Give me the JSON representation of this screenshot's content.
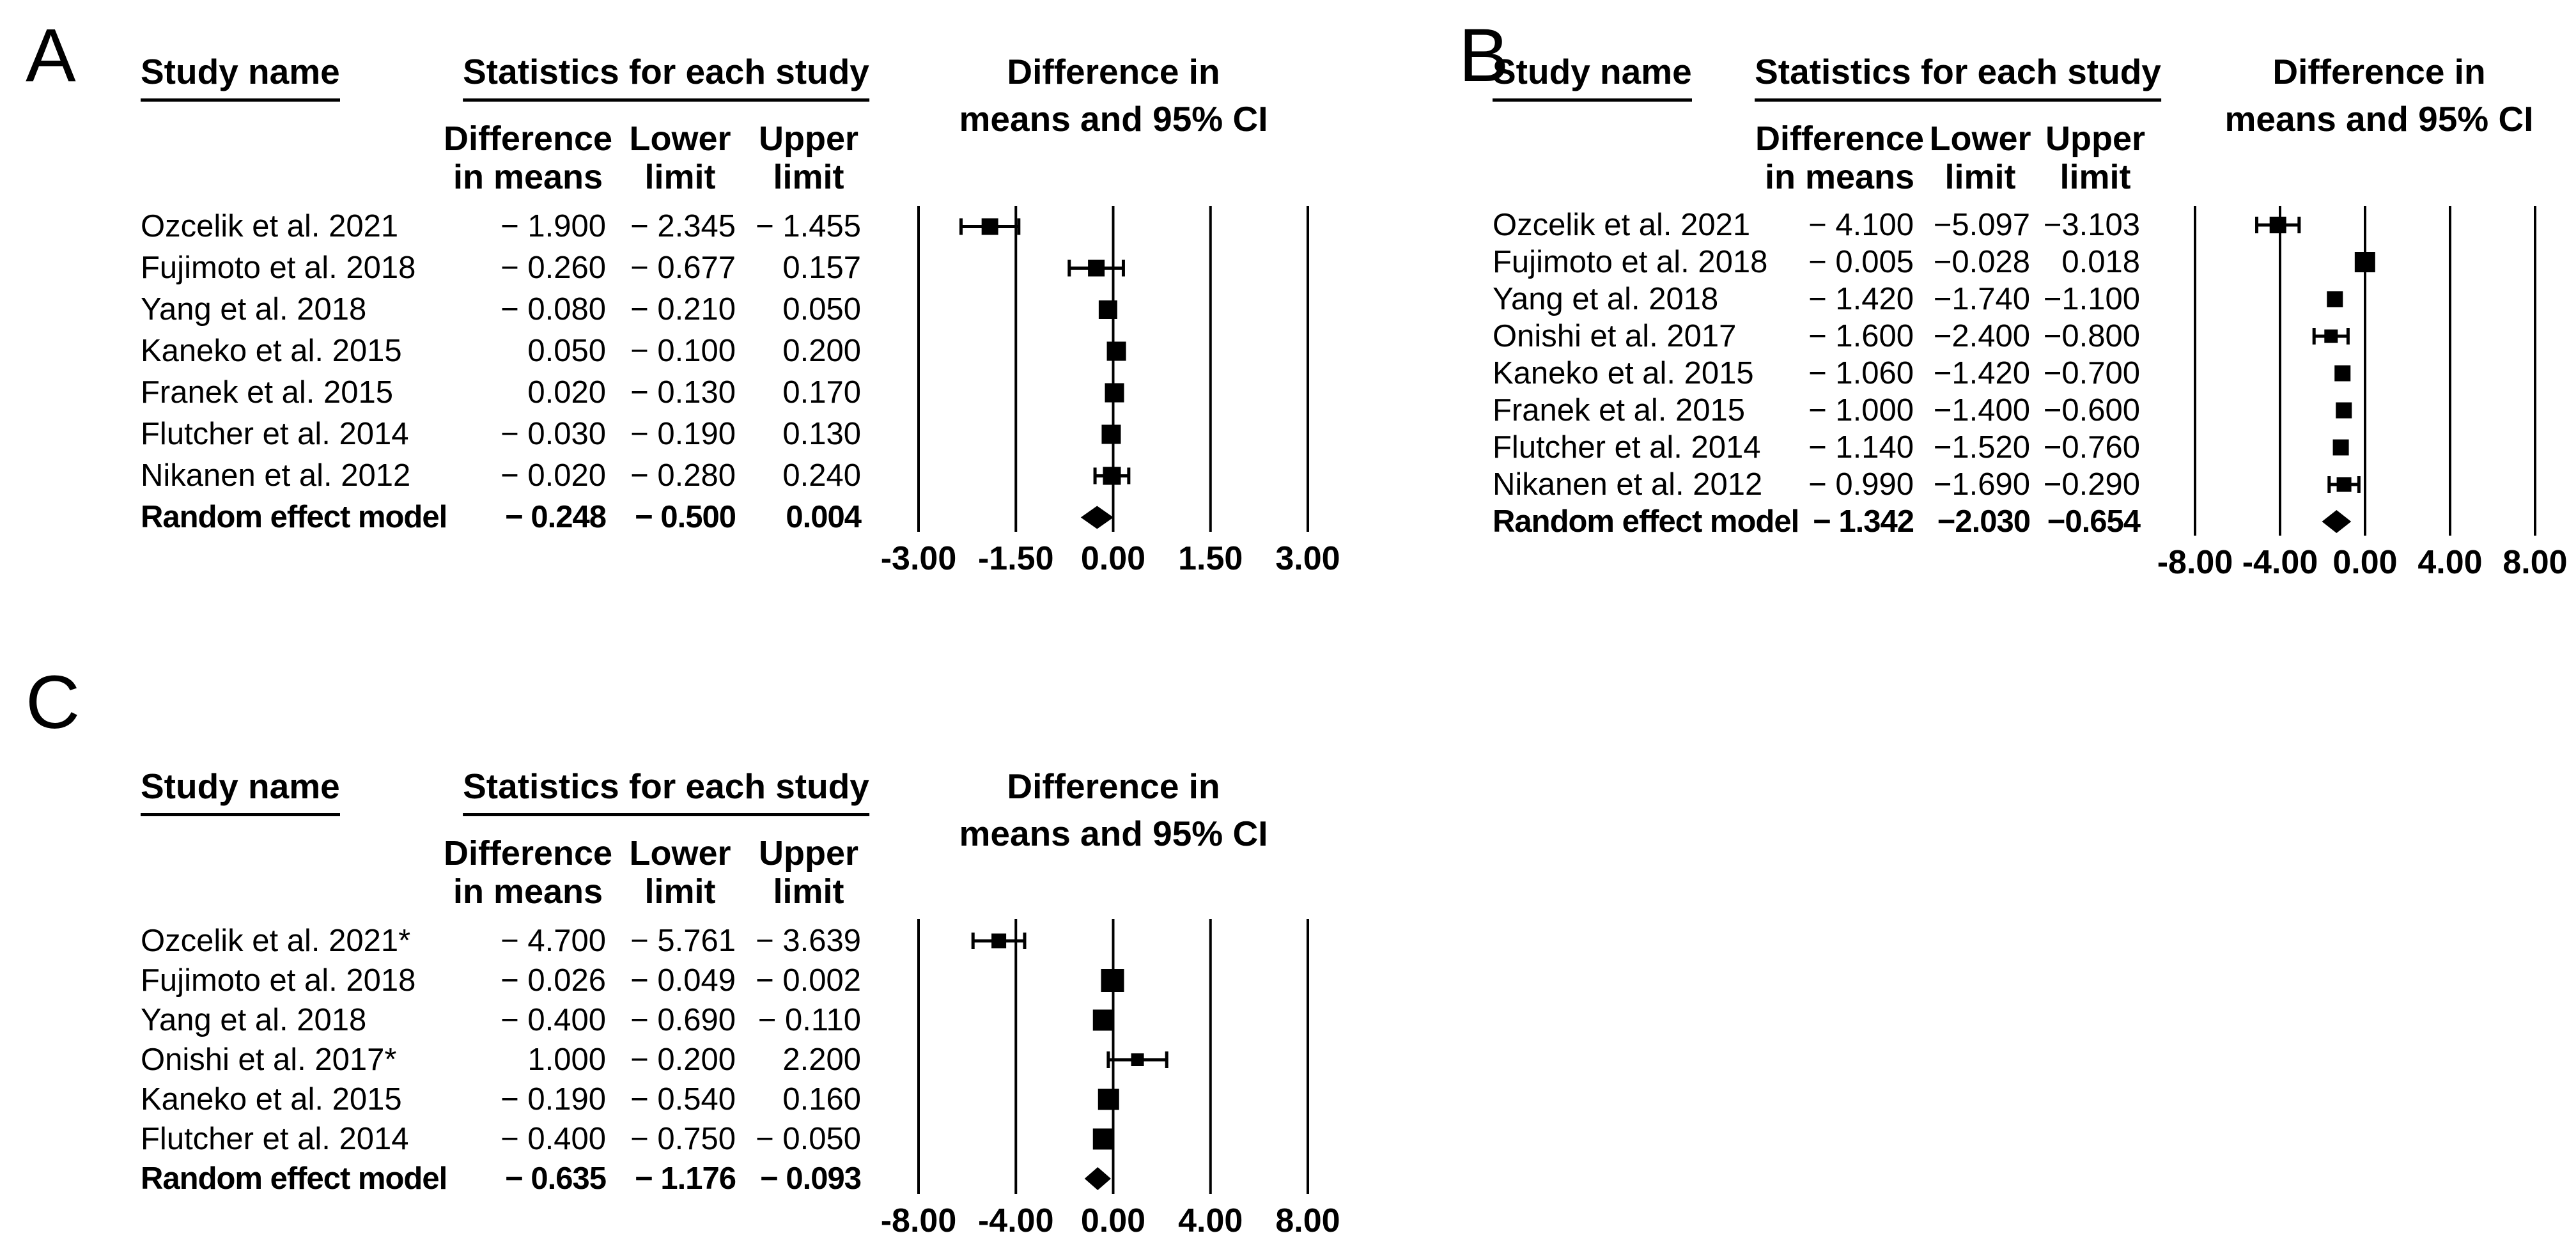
{
  "headers": {
    "study_name": "Study name",
    "stats_title": "Statistics for each study",
    "col_diff_line1": "Difference",
    "col_diff_line2": "in means",
    "col_lower_line1": "Lower",
    "col_lower_line2": "limit",
    "col_upper_line1": "Upper",
    "col_upper_line2": "limit",
    "plot_title_line1": "Difference in",
    "plot_title_line2": "means and 95% CI"
  },
  "chart_data": [
    {
      "type": "forest",
      "panel_label": "A",
      "title": "Difference in means and 95% CI",
      "xlim": [
        -3,
        3
      ],
      "tick_values": [
        -3,
        -1.5,
        0,
        1.5,
        3
      ],
      "tick_labels": [
        "-3.00",
        "-1.50",
        "0.00",
        "1.50",
        "3.00"
      ],
      "studies": [
        {
          "name": "Ozcelik et al. 2021",
          "mean": -1.9,
          "lower": -2.345,
          "upper": -1.455,
          "diff_text": "− 1.900",
          "lower_text": "− 2.345",
          "upper_text": "− 1.455",
          "box": 26
        },
        {
          "name": "Fujimoto et al. 2018",
          "mean": -0.26,
          "lower": -0.677,
          "upper": 0.157,
          "diff_text": "− 0.260",
          "lower_text": "− 0.677",
          "upper_text": "0.157",
          "box": 26
        },
        {
          "name": "Yang et al. 2018",
          "mean": -0.08,
          "lower": -0.21,
          "upper": 0.05,
          "diff_text": "− 0.080",
          "lower_text": "− 0.210",
          "upper_text": "0.050",
          "box": 29
        },
        {
          "name": "Kaneko et al. 2015",
          "mean": 0.05,
          "lower": -0.1,
          "upper": 0.2,
          "diff_text": "0.050",
          "lower_text": "− 0.100",
          "upper_text": "0.200",
          "box": 30
        },
        {
          "name": "Franek et al.  2015",
          "mean": 0.02,
          "lower": -0.13,
          "upper": 0.17,
          "diff_text": "0.020",
          "lower_text": "− 0.130",
          "upper_text": "0.170",
          "box": 30
        },
        {
          "name": "Flutcher et al. 2014",
          "mean": -0.03,
          "lower": -0.19,
          "upper": 0.13,
          "diff_text": "− 0.030",
          "lower_text": "− 0.190",
          "upper_text": "0.130",
          "box": 30
        },
        {
          "name": "Nikanen et al. 2012",
          "mean": -0.02,
          "lower": -0.28,
          "upper": 0.24,
          "diff_text": "− 0.020",
          "lower_text": "− 0.280",
          "upper_text": "0.240",
          "box": 28
        },
        {
          "name": "Random effect model",
          "mean": -0.248,
          "lower": -0.5,
          "upper": 0.004,
          "diff_text": "− 0.248",
          "lower_text": "− 0.500",
          "upper_text": "0.004",
          "summary": true
        }
      ]
    },
    {
      "type": "forest",
      "panel_label": "B",
      "title": "Difference in means and 95% CI",
      "xlim": [
        -8,
        8
      ],
      "tick_values": [
        -8,
        -4,
        0,
        4,
        8
      ],
      "tick_labels": [
        "-8.00",
        "-4.00",
        "0.00",
        "4.00",
        "8.00"
      ],
      "studies": [
        {
          "name": "Ozcelik et al. 2021",
          "mean": -4.1,
          "lower": -5.097,
          "upper": -3.103,
          "diff_text": "− 4.100",
          "lower_text": "−5.097",
          "upper_text": "−3.103",
          "box": 26
        },
        {
          "name": "Fujimoto et al. 2018",
          "mean": -0.005,
          "lower": -0.028,
          "upper": 0.018,
          "diff_text": "− 0.005",
          "lower_text": "−0.028",
          "upper_text": "0.018",
          "box": 32
        },
        {
          "name": "Yang et al. 2018",
          "mean": -1.42,
          "lower": -1.74,
          "upper": -1.1,
          "diff_text": "− 1.420",
          "lower_text": "−1.740",
          "upper_text": "−1.100",
          "box": 25
        },
        {
          "name": "Onishi et al. 2017",
          "mean": -1.6,
          "lower": -2.4,
          "upper": -0.8,
          "diff_text": "− 1.600",
          "lower_text": "−2.400",
          "upper_text": "−0.800",
          "box": 21
        },
        {
          "name": "Kaneko et al. 2015",
          "mean": -1.06,
          "lower": -1.42,
          "upper": -0.7,
          "diff_text": "− 1.060",
          "lower_text": "−1.420",
          "upper_text": "−0.700",
          "box": 25
        },
        {
          "name": "Franek  et al. 2015",
          "mean": -1.0,
          "lower": -1.4,
          "upper": -0.6,
          "diff_text": "− 1.000",
          "lower_text": "−1.400",
          "upper_text": "−0.600",
          "box": 25
        },
        {
          "name": "Flutcher et al. 2014",
          "mean": -1.14,
          "lower": -1.52,
          "upper": -0.76,
          "diff_text": "− 1.140",
          "lower_text": "−1.520",
          "upper_text": "−0.760",
          "box": 25
        },
        {
          "name": "Nikanen et al. 2012",
          "mean": -0.99,
          "lower": -1.69,
          "upper": -0.29,
          "diff_text": "− 0.990",
          "lower_text": "−1.690",
          "upper_text": "−0.290",
          "box": 23
        },
        {
          "name": "Random effect model",
          "mean": -1.342,
          "lower": -2.03,
          "upper": -0.654,
          "diff_text": "− 1.342",
          "lower_text": "−2.030",
          "upper_text": "−0.654",
          "summary": true
        }
      ]
    },
    {
      "type": "forest",
      "panel_label": "C",
      "title": "Difference in means and 95% CI",
      "xlim": [
        -8,
        8
      ],
      "tick_values": [
        -8,
        -4,
        0,
        4,
        8
      ],
      "tick_labels": [
        "-8.00",
        "-4.00",
        "0.00",
        "4.00",
        "8.00"
      ],
      "studies": [
        {
          "name": "Ozcelik et al. 2021*",
          "mean": -4.7,
          "lower": -5.761,
          "upper": -3.639,
          "diff_text": "− 4.700",
          "lower_text": "− 5.761",
          "upper_text": "− 3.639",
          "box": 23
        },
        {
          "name": "Fujimoto et al. 2018",
          "mean": -0.026,
          "lower": -0.049,
          "upper": -0.002,
          "diff_text": "− 0.026",
          "lower_text": "− 0.049",
          "upper_text": "− 0.002",
          "box": 36
        },
        {
          "name": "Yang et al. 2018",
          "mean": -0.4,
          "lower": -0.69,
          "upper": -0.11,
          "diff_text": "− 0.400",
          "lower_text": "− 0.690",
          "upper_text": "− 0.110",
          "box": 33
        },
        {
          "name": "Onishi et al. 2017*",
          "mean": 1.0,
          "lower": -0.2,
          "upper": 2.2,
          "diff_text": "1.000",
          "lower_text": "− 0.200",
          "upper_text": "2.200",
          "box": 20
        },
        {
          "name": "Kaneko et al. 2015",
          "mean": -0.19,
          "lower": -0.54,
          "upper": 0.16,
          "diff_text": "− 0.190",
          "lower_text": "− 0.540",
          "upper_text": "0.160",
          "box": 33
        },
        {
          "name": "Flutcher et al. 2014",
          "mean": -0.4,
          "lower": -0.75,
          "upper": -0.05,
          "diff_text": "− 0.400",
          "lower_text": "− 0.750",
          "upper_text": "− 0.050",
          "box": 33
        },
        {
          "name": "Random effect model",
          "mean": -0.635,
          "lower": -1.176,
          "upper": -0.093,
          "diff_text": "− 0.635",
          "lower_text": "− 1.176",
          "upper_text": "− 0.093",
          "summary": true
        }
      ]
    }
  ]
}
